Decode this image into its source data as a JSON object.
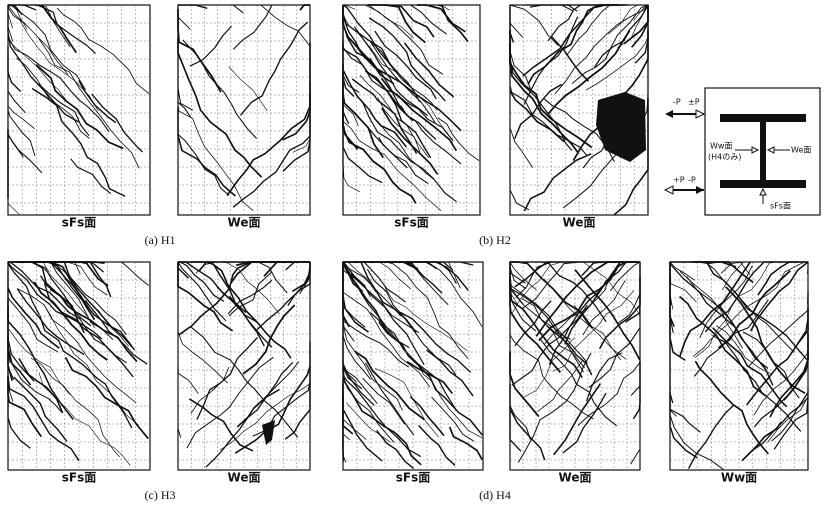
{
  "panels": [
    {
      "caption": "(a) H1",
      "faces": [
        "sFs面",
        "We面"
      ]
    },
    {
      "caption": "(b) H2",
      "faces": [
        "sFs面",
        "We面"
      ]
    },
    {
      "caption": "(c) H3",
      "faces": [
        "sFs面",
        "We面"
      ]
    },
    {
      "caption": "(d) H4",
      "faces": [
        "sFs面",
        "We面",
        "Ww面"
      ]
    }
  ],
  "diagram": {
    "top_loads": [
      "-P",
      "±P"
    ],
    "bottom_loads": [
      "+P",
      "-P"
    ],
    "west_face": "Ww面",
    "west_note": "(H4のみ)",
    "east_face": "We面",
    "bottom_face": "sFs面"
  }
}
